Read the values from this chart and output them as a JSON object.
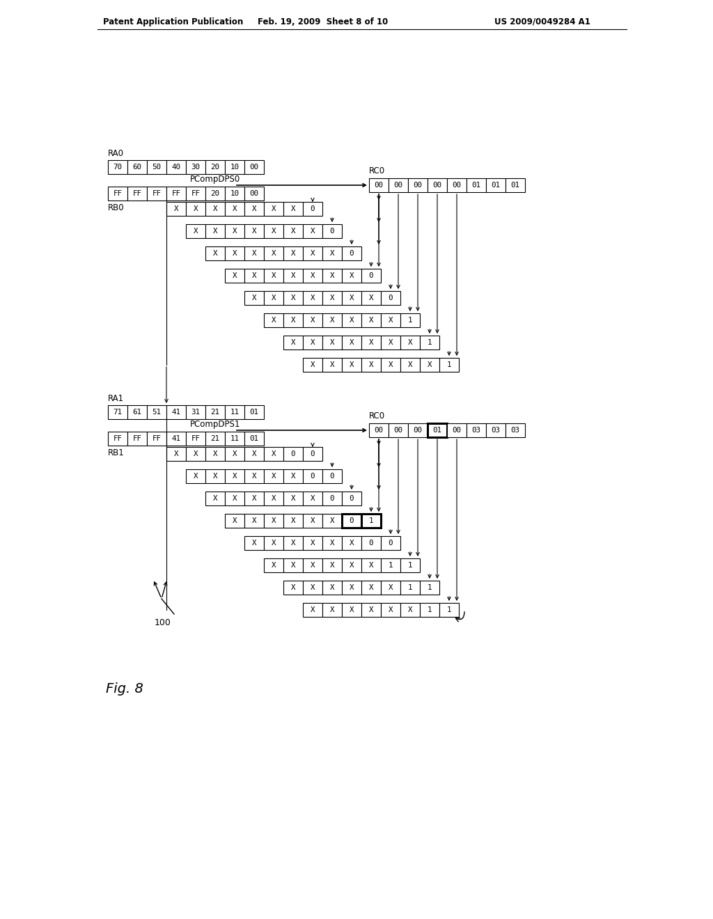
{
  "header_left": "Patent Application Publication",
  "header_mid": "Feb. 19, 2009  Sheet 8 of 10",
  "header_right": "US 2009/0049284 A1",
  "fig_label": "Fig. 8",
  "ref_label": "100",
  "bg_color": "#ffffff",
  "section0": {
    "label_ra": "RA0",
    "ra_values": [
      "70",
      "60",
      "50",
      "40",
      "30",
      "20",
      "10",
      "00"
    ],
    "label_rb": "RB0",
    "rb_values": [
      "FF",
      "FF",
      "FF",
      "FF",
      "FF",
      "20",
      "10",
      "00"
    ],
    "pcomp_label": "PCompDPS0",
    "label_rc": "RC0",
    "rc_values": [
      "00",
      "00",
      "00",
      "00",
      "00",
      "01",
      "01",
      "01"
    ],
    "rc_bold_indices": [],
    "inter_last_vals": [
      "0",
      "0",
      "0",
      "0",
      "0",
      "1",
      "1",
      "1"
    ]
  },
  "section1": {
    "label_ra": "RA1",
    "ra_values": [
      "71",
      "61",
      "51",
      "41",
      "31",
      "21",
      "11",
      "01"
    ],
    "label_rb": "RB1",
    "rb_values": [
      "FF",
      "FF",
      "FF",
      "41",
      "FF",
      "21",
      "11",
      "01"
    ],
    "pcomp_label": "PCompDPS1",
    "label_rc": "RC0",
    "rc_values": [
      "00",
      "00",
      "00",
      "01",
      "00",
      "03",
      "03",
      "03"
    ],
    "rc_bold_indices": [
      3
    ],
    "inter_last_2vals": [
      [
        "0",
        "0"
      ],
      [
        "0",
        "0"
      ],
      [
        "0",
        "0"
      ],
      [
        "0",
        "1"
      ],
      [
        "0",
        "0"
      ],
      [
        "1",
        "1"
      ],
      [
        "1",
        "1"
      ],
      [
        "1",
        "1"
      ]
    ],
    "inter_bold_row": 3
  }
}
